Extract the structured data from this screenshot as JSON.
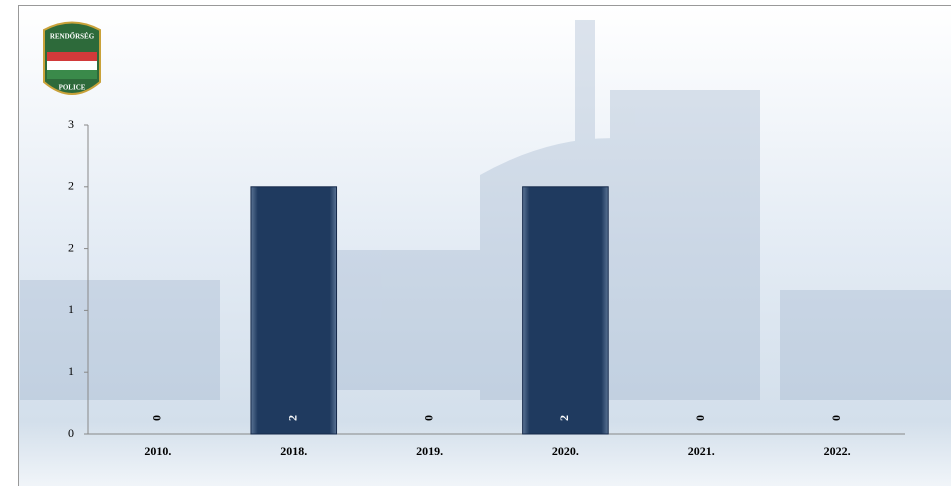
{
  "logo": {
    "top": "RENDŐRSÉG",
    "bottom": "POLICE"
  },
  "chart_data": {
    "type": "bar",
    "categories": [
      "2010.",
      "2018.",
      "2019.",
      "2020.",
      "2021.",
      "2022."
    ],
    "values": [
      0,
      2,
      0,
      2,
      0,
      0
    ],
    "color": "#1f3a5f",
    "ylim": [
      0,
      2.5
    ],
    "yticks": [
      0,
      {
        "value": 0.5,
        "label": "1"
      },
      1,
      {
        "value": 1.5,
        "label": "2"
      },
      2,
      {
        "value": 2.5,
        "label": "3"
      }
    ]
  }
}
